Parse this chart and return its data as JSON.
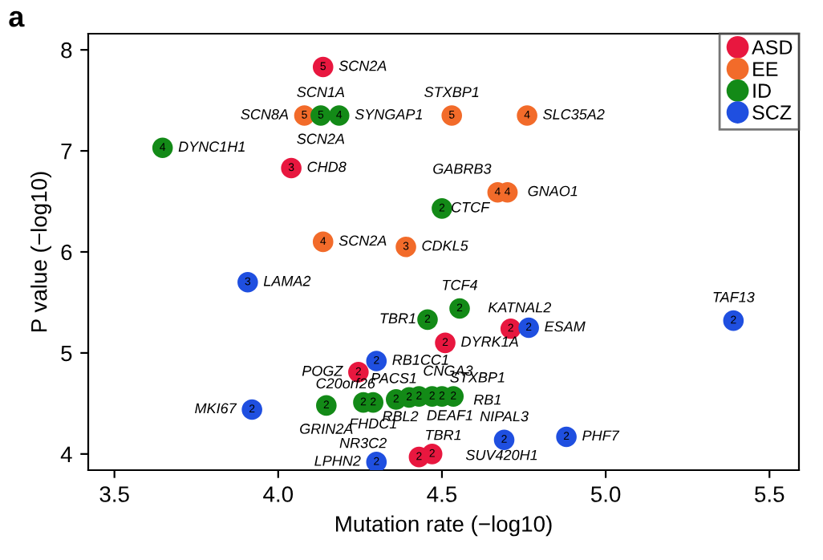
{
  "chart_data": {
    "type": "scatter",
    "title": "a",
    "xlabel": "Mutation rate (−log10)",
    "ylabel": "P value (−log10)",
    "xlim": [
      3.42,
      5.59
    ],
    "ylim": [
      3.84,
      8.16
    ],
    "xticks": [
      3.5,
      {
        "value": 4.0,
        "label": "4.0"
      },
      4.5,
      {
        "value": 5.0,
        "label": "5.0"
      },
      5.5
    ],
    "yticks": [
      4,
      5,
      6,
      7,
      8
    ],
    "grid": false,
    "legend": "top right",
    "marker": "circle",
    "series": [
      {
        "name": "ASD",
        "color": "#e8173f",
        "x": [
          4.137,
          4.04,
          4.51,
          4.71,
          4.245,
          4.47,
          4.43
        ],
        "values": [
          7.83,
          6.83,
          5.1,
          5.24,
          4.81,
          4.0,
          3.97
        ]
      },
      {
        "name": "EE",
        "color": "#f26b2a",
        "x": [
          4.08,
          4.53,
          4.76,
          4.67,
          4.7,
          4.137,
          4.39
        ],
        "values": [
          7.35,
          7.35,
          7.35,
          6.59,
          6.59,
          6.1,
          6.05
        ]
      },
      {
        "name": "ID",
        "color": "#138a17",
        "x": [
          4.13,
          4.186,
          3.647,
          4.5,
          4.554,
          4.456,
          4.147,
          4.26,
          4.29,
          4.36,
          4.4,
          4.43,
          4.47,
          4.5,
          4.535
        ],
        "values": [
          7.35,
          7.35,
          7.03,
          6.43,
          5.44,
          5.33,
          4.48,
          4.51,
          4.51,
          4.54,
          4.56,
          4.57,
          4.57,
          4.57,
          4.57
        ]
      },
      {
        "name": "SCZ",
        "color": "#1f4fe0",
        "x": [
          3.907,
          4.3,
          3.92,
          4.3,
          4.765,
          5.39,
          4.69,
          4.88
        ],
        "values": [
          5.7,
          4.92,
          4.44,
          3.92,
          5.25,
          5.32,
          4.14,
          4.17
        ]
      }
    ],
    "annotations": [
      {
        "text": "SCN2A",
        "x": 4.137,
        "y": 7.83
      },
      {
        "text": "CHD8",
        "x": 4.04,
        "y": 6.83
      },
      {
        "text": "DYRK1A",
        "x": 4.51,
        "y": 5.1
      },
      {
        "text": "KATNAL2",
        "x": 4.71,
        "y": 5.24
      },
      {
        "text": "POGZ",
        "x": 4.245,
        "y": 4.81
      },
      {
        "text": "TBR1",
        "x": 4.47,
        "y": 4.0
      },
      {
        "text": "SUV420H1",
        "x": 4.47,
        "y": 4.0
      },
      {
        "text": "SCN8A",
        "x": 4.08,
        "y": 7.35
      },
      {
        "text": "STXBP1",
        "x": 4.53,
        "y": 7.35
      },
      {
        "text": "SLC35A2",
        "x": 4.76,
        "y": 7.35
      },
      {
        "text": "GABRB3",
        "x": 4.67,
        "y": 6.59
      },
      {
        "text": "GNAO1",
        "x": 4.7,
        "y": 6.59
      },
      {
        "text": "SCN2A",
        "x": 4.137,
        "y": 6.1
      },
      {
        "text": "CDKL5",
        "x": 4.39,
        "y": 6.05
      },
      {
        "text": "SCN1A",
        "x": 4.13,
        "y": 7.35
      },
      {
        "text": "SCN2A",
        "x": 4.13,
        "y": 7.35
      },
      {
        "text": "SYNGAP1",
        "x": 4.186,
        "y": 7.35
      },
      {
        "text": "DYNC1H1",
        "x": 3.647,
        "y": 7.03
      },
      {
        "text": "CTCF",
        "x": 4.5,
        "y": 6.43
      },
      {
        "text": "TCF4",
        "x": 4.554,
        "y": 5.44
      },
      {
        "text": "TBR1",
        "x": 4.456,
        "y": 5.33
      },
      {
        "text": "GRIN2A",
        "x": 4.147,
        "y": 4.48
      },
      {
        "text": "C20orf26",
        "x": 4.26,
        "y": 4.51
      },
      {
        "text": "FHDC1",
        "x": 4.29,
        "y": 4.51
      },
      {
        "text": "PACS1",
        "x": 4.36,
        "y": 4.54
      },
      {
        "text": "RBL2",
        "x": 4.4,
        "y": 4.56
      },
      {
        "text": "CNGA3",
        "x": 4.43,
        "y": 4.57
      },
      {
        "text": "DEAF1",
        "x": 4.47,
        "y": 4.57
      },
      {
        "text": "STXBP1",
        "x": 4.5,
        "y": 4.57
      },
      {
        "text": "RB1",
        "x": 4.535,
        "y": 4.57
      },
      {
        "text": "LAMA2",
        "x": 3.907,
        "y": 5.7
      },
      {
        "text": "RB1CC1",
        "x": 4.3,
        "y": 4.92
      },
      {
        "text": "MKI67",
        "x": 3.92,
        "y": 4.44
      },
      {
        "text": "LPHN2",
        "x": 4.3,
        "y": 3.92
      },
      {
        "text": "NR3C2",
        "x": 4.3,
        "y": 3.92
      },
      {
        "text": "ESAM",
        "x": 4.765,
        "y": 5.25
      },
      {
        "text": "TAF13",
        "x": 5.39,
        "y": 5.32
      },
      {
        "text": "NIPAL3",
        "x": 4.69,
        "y": 4.14
      },
      {
        "text": "PHF7",
        "x": 4.88,
        "y": 4.17
      },
      {
        "text": "5",
        "x": 4.137,
        "y": 7.83
      },
      {
        "text": "3",
        "x": 4.04,
        "y": 6.83
      },
      {
        "text": "2",
        "x": 4.51,
        "y": 5.1
      },
      {
        "text": "2",
        "x": 4.71,
        "y": 5.24
      },
      {
        "text": "2",
        "x": 4.245,
        "y": 4.81
      },
      {
        "text": "2",
        "x": 4.47,
        "y": 4.0
      },
      {
        "text": "2",
        "x": 4.43,
        "y": 3.97
      },
      {
        "text": "5",
        "x": 4.08,
        "y": 7.35
      },
      {
        "text": "5",
        "x": 4.53,
        "y": 7.35
      },
      {
        "text": "4",
        "x": 4.76,
        "y": 7.35
      },
      {
        "text": "4",
        "x": 4.67,
        "y": 6.59
      },
      {
        "text": "4",
        "x": 4.7,
        "y": 6.59
      },
      {
        "text": "4",
        "x": 4.137,
        "y": 6.1
      },
      {
        "text": "3",
        "x": 4.39,
        "y": 6.05
      },
      {
        "text": "5",
        "x": 4.13,
        "y": 7.35
      },
      {
        "text": "4",
        "x": 4.186,
        "y": 7.35
      },
      {
        "text": "4",
        "x": 3.647,
        "y": 7.03
      },
      {
        "text": "2",
        "x": 4.5,
        "y": 6.43
      },
      {
        "text": "2",
        "x": 4.554,
        "y": 5.44
      },
      {
        "text": "2",
        "x": 4.456,
        "y": 5.33
      },
      {
        "text": "2",
        "x": 4.147,
        "y": 4.48
      },
      {
        "text": "2",
        "x": 4.26,
        "y": 4.51
      },
      {
        "text": "2",
        "x": 4.29,
        "y": 4.51
      },
      {
        "text": "2",
        "x": 4.36,
        "y": 4.54
      },
      {
        "text": "2",
        "x": 4.4,
        "y": 4.56
      },
      {
        "text": "2",
        "x": 4.43,
        "y": 4.57
      },
      {
        "text": "2",
        "x": 4.47,
        "y": 4.57
      },
      {
        "text": "2",
        "x": 4.5,
        "y": 4.57
      },
      {
        "text": "2",
        "x": 4.535,
        "y": 4.57
      },
      {
        "text": "3",
        "x": 3.907,
        "y": 5.7
      },
      {
        "text": "2",
        "x": 4.3,
        "y": 4.92
      },
      {
        "text": "2",
        "x": 3.92,
        "y": 4.44
      },
      {
        "text": "2",
        "x": 4.3,
        "y": 3.92
      },
      {
        "text": "2",
        "x": 4.765,
        "y": 5.25
      },
      {
        "text": "2",
        "x": 5.39,
        "y": 5.32
      },
      {
        "text": "2",
        "x": 4.69,
        "y": 4.14
      },
      {
        "text": "2",
        "x": 4.88,
        "y": 4.17
      }
    ]
  }
}
